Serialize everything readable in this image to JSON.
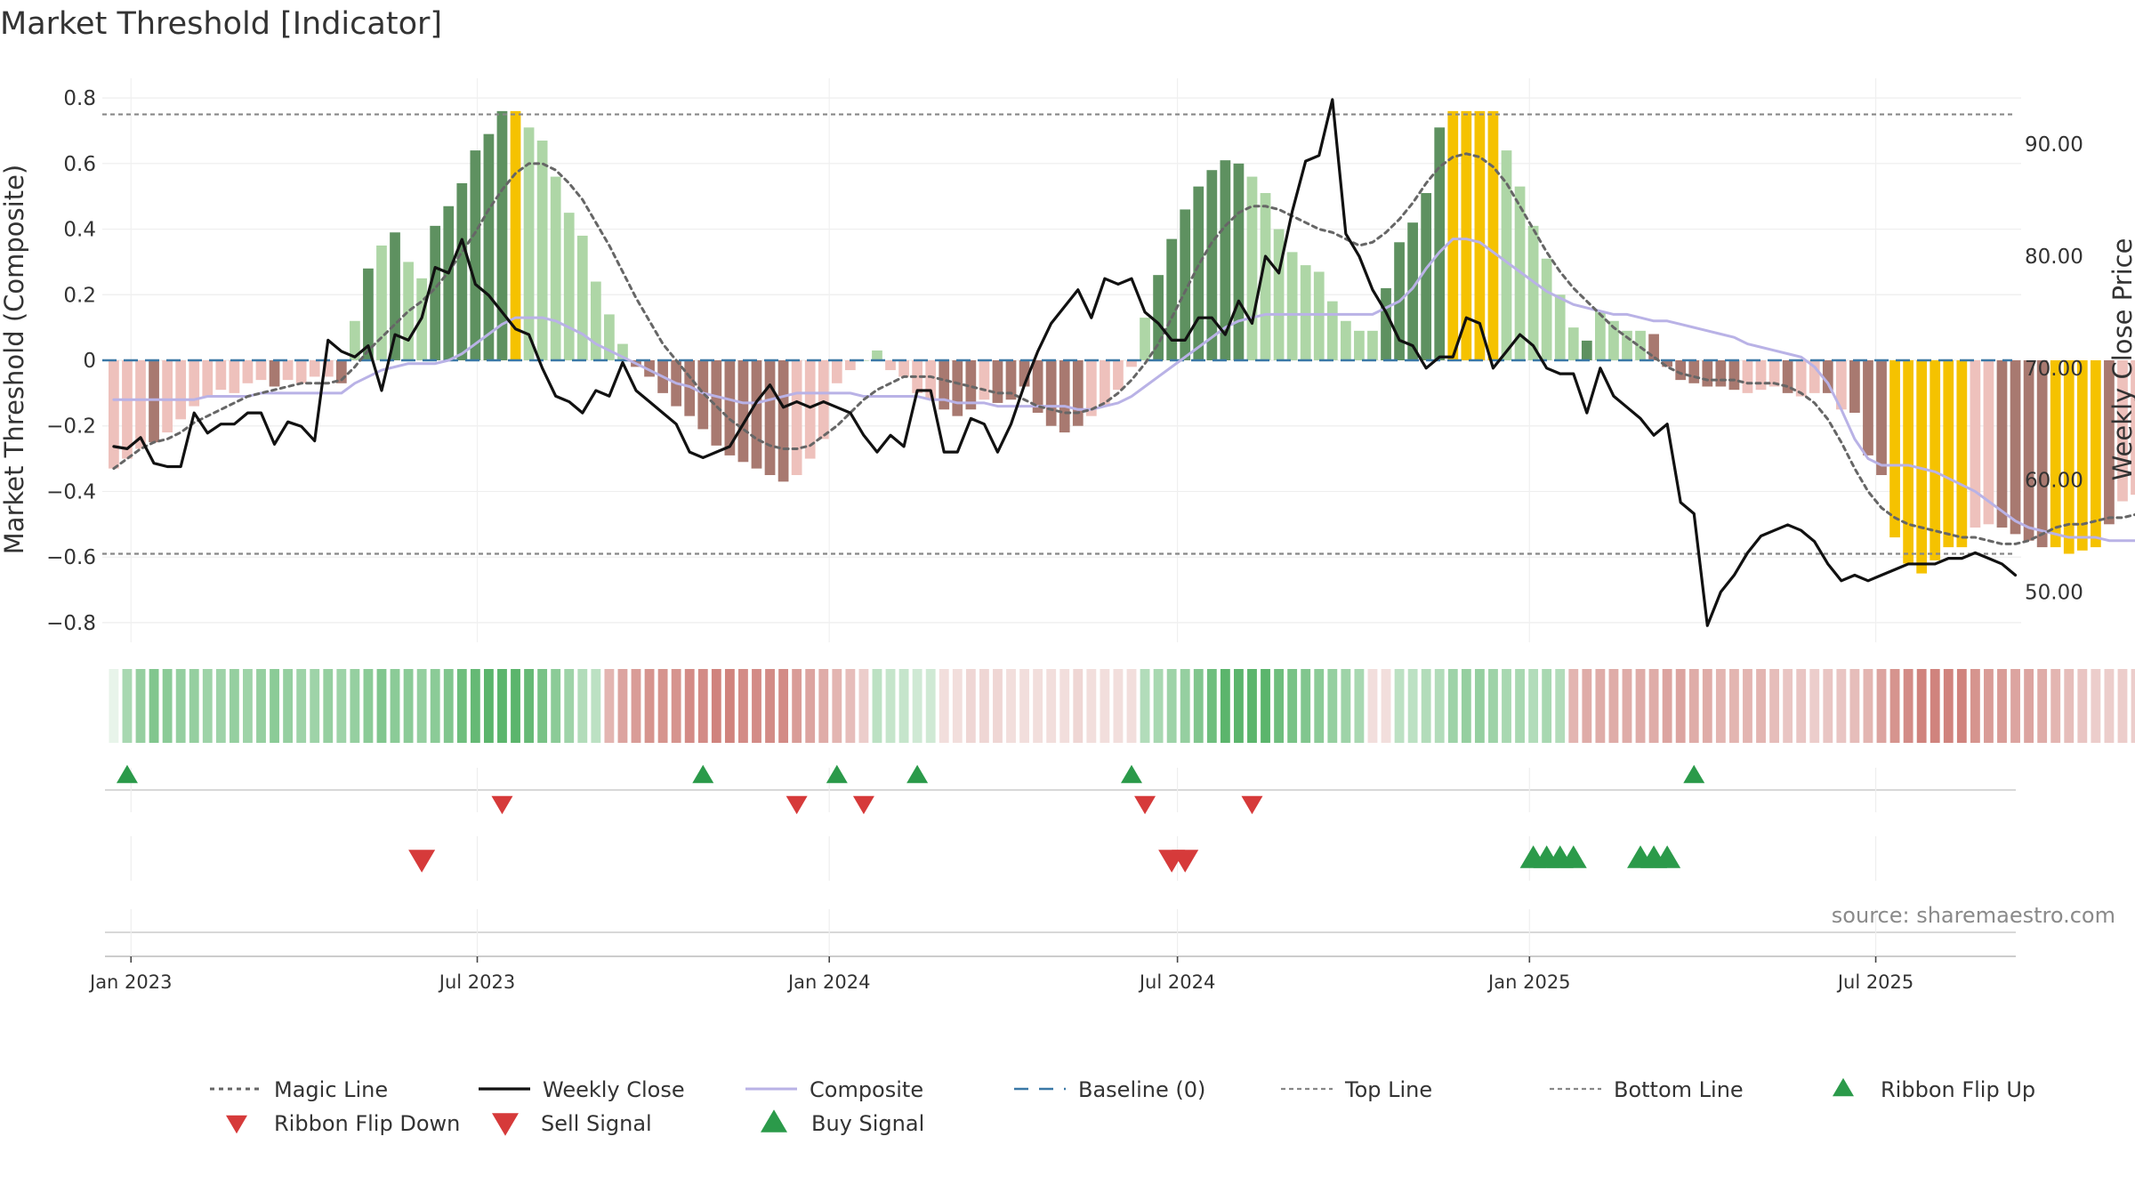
{
  "title": "Market Threshold [Indicator]",
  "source_text": "source: sharemaestro.com",
  "chart_data": {
    "type": "bar",
    "title": "Market Threshold [Indicator]",
    "ylabel_left": "Market Threshold (Composite)",
    "ylabel_right": "Weekly Close Price",
    "ylim_left": [
      -0.86,
      0.86
    ],
    "ylim_right": [
      45.5,
      95.9
    ],
    "yticks_left": [
      0.8,
      0.6,
      0.4,
      0.2,
      0,
      -0.2,
      -0.4,
      -0.6,
      -0.8
    ],
    "yticks_left_labels": [
      "0.8",
      "0.6",
      "0.4",
      "0.2",
      "0",
      "−0.2",
      "−0.4",
      "−0.6",
      "−0.8"
    ],
    "yticks_right": [
      90,
      80,
      70,
      60,
      50
    ],
    "yticks_right_labels": [
      "90.00",
      "80.00",
      "70.00",
      "60.00",
      "50.00"
    ],
    "xlim": [
      "2022-12-17",
      "2025-09-15"
    ],
    "xticks": [
      "2023-01-01",
      "2023-07-01",
      "2024-01-01",
      "2024-07-01",
      "2025-01-01",
      "2025-07-01"
    ],
    "xtick_labels": [
      "Jan 2023",
      "Jul 2023",
      "Jan 2024",
      "Jul 2024",
      "Jan 2025",
      "Jul 2025"
    ],
    "top_line": 0.75,
    "bottom_line": -0.59,
    "baseline": 0,
    "grid": true,
    "legend_position": "bottom",
    "colors": {
      "pos_dark": "#5e9160",
      "pos_light": "#aed6a6",
      "neg_dark": "#a87970",
      "neg_light": "#eec1bc",
      "extreme": "#f5c200",
      "magic": "#666666",
      "close": "#111111",
      "composite": "#b9b2e6",
      "baseline": "#3a78a6",
      "threshold": "#888888",
      "buy": "#2b9a4a",
      "sell": "#d63a3a"
    },
    "legend": [
      {
        "key": "magic",
        "label": "Magic Line"
      },
      {
        "key": "close",
        "label": "Weekly Close"
      },
      {
        "key": "composite",
        "label": "Composite"
      },
      {
        "key": "baseline",
        "label": "Baseline (0)"
      },
      {
        "key": "top",
        "label": "Top Line"
      },
      {
        "key": "bottom",
        "label": "Bottom Line"
      },
      {
        "key": "flip_up",
        "label": "Ribbon Flip Up"
      },
      {
        "key": "flip_down",
        "label": "Ribbon Flip Down"
      },
      {
        "key": "sell",
        "label": "Sell Signal"
      },
      {
        "key": "buy",
        "label": "Buy Signal"
      }
    ],
    "bars": [
      -0.33,
      -0.3,
      -0.27,
      -0.25,
      -0.22,
      -0.18,
      -0.14,
      -0.11,
      -0.09,
      -0.1,
      -0.07,
      -0.06,
      -0.08,
      -0.06,
      -0.07,
      -0.05,
      -0.05,
      -0.07,
      0.12,
      0.28,
      0.35,
      0.39,
      0.3,
      0.25,
      0.41,
      0.47,
      0.54,
      0.64,
      0.69,
      0.76,
      0.76,
      0.71,
      0.67,
      0.56,
      0.45,
      0.38,
      0.24,
      0.14,
      0.05,
      -0.02,
      -0.05,
      -0.1,
      -0.14,
      -0.17,
      -0.21,
      -0.26,
      -0.29,
      -0.31,
      -0.33,
      -0.35,
      -0.37,
      -0.35,
      -0.3,
      -0.24,
      -0.07,
      -0.03,
      0.0,
      0.03,
      -0.03,
      -0.05,
      -0.1,
      -0.12,
      -0.15,
      -0.17,
      -0.15,
      -0.12,
      -0.13,
      -0.12,
      -0.08,
      -0.16,
      -0.2,
      -0.22,
      -0.2,
      -0.17,
      -0.14,
      -0.09,
      -0.02,
      0.13,
      0.26,
      0.37,
      0.46,
      0.53,
      0.58,
      0.61,
      0.6,
      0.56,
      0.51,
      0.4,
      0.33,
      0.29,
      0.27,
      0.18,
      0.12,
      0.09,
      0.09,
      0.22,
      0.36,
      0.42,
      0.51,
      0.71,
      0.76,
      0.76,
      0.76,
      0.76,
      0.64,
      0.53,
      0.41,
      0.31,
      0.2,
      0.1,
      0.06,
      0.15,
      0.12,
      0.09,
      0.09,
      0.08,
      -0.02,
      -0.06,
      -0.07,
      -0.08,
      -0.08,
      -0.09,
      -0.1,
      -0.09,
      -0.08,
      -0.1,
      -0.11,
      -0.1,
      -0.1,
      -0.15,
      -0.16,
      -0.29,
      -0.35,
      -0.54,
      -0.62,
      -0.65,
      -0.61,
      -0.57,
      -0.57,
      -0.51,
      -0.5,
      -0.51,
      -0.53,
      -0.55,
      -0.57,
      -0.57,
      -0.59,
      -0.58,
      -0.57,
      -0.5,
      -0.43,
      -0.41,
      -0.4,
      -0.42,
      -0.47,
      -0.48,
      -0.48,
      -0.46,
      -0.45,
      -0.43
    ],
    "bar_kind": [
      "nl",
      "nl",
      "nl",
      "nd",
      "nl",
      "nl",
      "nl",
      "nl",
      "nl",
      "nl",
      "nl",
      "nl",
      "nd",
      "nl",
      "nl",
      "nl",
      "nl",
      "nd",
      "pl",
      "pd",
      "pl",
      "pd",
      "pl",
      "pl",
      "pd",
      "pd",
      "pd",
      "pd",
      "pd",
      "pd",
      "ex",
      "pl",
      "pl",
      "pl",
      "pl",
      "pl",
      "pl",
      "pl",
      "pl",
      "nd",
      "nd",
      "nd",
      "nd",
      "nd",
      "nd",
      "nd",
      "nd",
      "nd",
      "nd",
      "nd",
      "nd",
      "nl",
      "nl",
      "nl",
      "nl",
      "nl",
      "pl",
      "pl",
      "nl",
      "nl",
      "nl",
      "nl",
      "nd",
      "nd",
      "nd",
      "nl",
      "nd",
      "nd",
      "nd",
      "nd",
      "nd",
      "nd",
      "nd",
      "nl",
      "nl",
      "nl",
      "nl",
      "pl",
      "pd",
      "pd",
      "pd",
      "pd",
      "pd",
      "pd",
      "pd",
      "pl",
      "pl",
      "pl",
      "pl",
      "pl",
      "pl",
      "pl",
      "pl",
      "pl",
      "pl",
      "pd",
      "pd",
      "pd",
      "pd",
      "pd",
      "ex",
      "ex",
      "ex",
      "ex",
      "pl",
      "pl",
      "pl",
      "pl",
      "pl",
      "pl",
      "pd",
      "pl",
      "pl",
      "pl",
      "pl",
      "nd",
      "nd",
      "nd",
      "nd",
      "nd",
      "nd",
      "nd",
      "nl",
      "nl",
      "nl",
      "nd",
      "nl",
      "nl",
      "nd",
      "nl",
      "nd",
      "nd",
      "nd",
      "ex",
      "ex",
      "ex",
      "ex",
      "ex",
      "ex",
      "nl",
      "nl",
      "nd",
      "nd",
      "nd",
      "nd",
      "ex",
      "ex",
      "ex",
      "ex",
      "nd",
      "nl",
      "nl",
      "nl",
      "nd",
      "nl",
      "nd",
      "nl",
      "nl",
      "nd",
      "nl"
    ],
    "weekly_close": [
      63.0,
      62.8,
      63.8,
      61.5,
      61.2,
      61.2,
      66.0,
      64.2,
      65.0,
      65.0,
      66.0,
      66.0,
      63.2,
      65.2,
      64.8,
      63.5,
      72.5,
      71.5,
      71.0,
      72.0,
      68.0,
      73.0,
      72.5,
      74.5,
      79.0,
      78.5,
      81.5,
      77.5,
      76.5,
      75.0,
      73.5,
      73.0,
      70.0,
      67.5,
      67.0,
      66.0,
      68.0,
      67.5,
      70.5,
      68.0,
      67.0,
      66.0,
      65.0,
      62.5,
      62.0,
      62.5,
      63.0,
      65.0,
      67.0,
      68.5,
      66.5,
      67.0,
      66.5,
      67.0,
      66.5,
      66.0,
      64.0,
      62.5,
      64.0,
      63.0,
      68.0,
      68.0,
      62.5,
      62.5,
      65.5,
      65.0,
      62.5,
      65.0,
      68.5,
      71.5,
      74.0,
      75.5,
      77.0,
      74.5,
      78.0,
      77.5,
      78.0,
      75.0,
      74.0,
      72.5,
      72.5,
      74.5,
      74.5,
      73.0,
      76.0,
      74.0,
      80.0,
      78.5,
      84.0,
      88.5,
      89.0,
      94.0,
      82.0,
      80.0,
      77.0,
      75.0,
      72.5,
      72.0,
      70.0,
      71.0,
      71.0,
      74.5,
      74.0,
      70.0,
      71.5,
      73.0,
      72.0,
      70.0,
      69.5,
      69.5,
      66.0,
      70.0,
      67.5,
      66.5,
      65.5,
      64.0,
      65.0,
      58.0,
      57.0,
      47.0,
      50.0,
      51.5,
      53.5,
      55.0,
      55.5,
      56.0,
      55.5,
      54.5,
      52.5,
      51.0,
      51.5,
      51.0,
      51.5,
      52.0,
      52.5,
      52.5,
      52.5,
      53.0,
      53.0,
      53.5,
      53.0,
      52.5,
      51.5
    ],
    "close_start_index": 0,
    "magic_line": [
      -0.33,
      -0.3,
      -0.27,
      -0.25,
      -0.24,
      -0.22,
      -0.19,
      -0.17,
      -0.15,
      -0.13,
      -0.11,
      -0.1,
      -0.09,
      -0.08,
      -0.07,
      -0.07,
      -0.07,
      -0.06,
      -0.02,
      0.03,
      0.07,
      0.11,
      0.15,
      0.18,
      0.22,
      0.27,
      0.33,
      0.39,
      0.46,
      0.52,
      0.57,
      0.6,
      0.6,
      0.58,
      0.54,
      0.49,
      0.42,
      0.35,
      0.27,
      0.19,
      0.12,
      0.05,
      0.0,
      -0.05,
      -0.1,
      -0.14,
      -0.18,
      -0.21,
      -0.24,
      -0.26,
      -0.27,
      -0.27,
      -0.26,
      -0.23,
      -0.2,
      -0.16,
      -0.12,
      -0.09,
      -0.07,
      -0.05,
      -0.05,
      -0.05,
      -0.06,
      -0.07,
      -0.08,
      -0.09,
      -0.1,
      -0.1,
      -0.12,
      -0.14,
      -0.15,
      -0.16,
      -0.16,
      -0.15,
      -0.13,
      -0.1,
      -0.06,
      -0.01,
      0.05,
      0.13,
      0.21,
      0.29,
      0.36,
      0.41,
      0.45,
      0.47,
      0.47,
      0.46,
      0.44,
      0.42,
      0.4,
      0.39,
      0.37,
      0.35,
      0.36,
      0.39,
      0.43,
      0.48,
      0.54,
      0.59,
      0.62,
      0.63,
      0.62,
      0.59,
      0.54,
      0.47,
      0.4,
      0.33,
      0.27,
      0.22,
      0.18,
      0.14,
      0.1,
      0.07,
      0.04,
      0.01,
      -0.02,
      -0.04,
      -0.05,
      -0.06,
      -0.06,
      -0.06,
      -0.07,
      -0.07,
      -0.07,
      -0.08,
      -0.1,
      -0.13,
      -0.18,
      -0.25,
      -0.33,
      -0.4,
      -0.45,
      -0.48,
      -0.5,
      -0.51,
      -0.52,
      -0.53,
      -0.54,
      -0.54,
      -0.55,
      -0.56,
      -0.56,
      -0.55,
      -0.53,
      -0.51,
      -0.5,
      -0.5,
      -0.49,
      -0.48,
      -0.48,
      -0.47,
      -0.46,
      -0.46,
      -0.46,
      -0.46
    ],
    "composite": [
      -0.12,
      -0.12,
      -0.12,
      -0.12,
      -0.12,
      -0.12,
      -0.12,
      -0.11,
      -0.11,
      -0.11,
      -0.11,
      -0.1,
      -0.1,
      -0.1,
      -0.1,
      -0.1,
      -0.1,
      -0.1,
      -0.07,
      -0.05,
      -0.03,
      -0.02,
      -0.01,
      -0.01,
      -0.01,
      0.0,
      0.02,
      0.05,
      0.08,
      0.11,
      0.13,
      0.13,
      0.13,
      0.12,
      0.1,
      0.08,
      0.05,
      0.03,
      0.01,
      -0.01,
      -0.03,
      -0.05,
      -0.07,
      -0.08,
      -0.1,
      -0.11,
      -0.12,
      -0.13,
      -0.13,
      -0.12,
      -0.11,
      -0.1,
      -0.1,
      -0.1,
      -0.1,
      -0.1,
      -0.11,
      -0.11,
      -0.11,
      -0.11,
      -0.11,
      -0.12,
      -0.12,
      -0.13,
      -0.13,
      -0.13,
      -0.14,
      -0.14,
      -0.14,
      -0.14,
      -0.14,
      -0.14,
      -0.15,
      -0.15,
      -0.14,
      -0.13,
      -0.11,
      -0.08,
      -0.05,
      -0.02,
      0.01,
      0.04,
      0.07,
      0.1,
      0.12,
      0.13,
      0.14,
      0.14,
      0.14,
      0.14,
      0.14,
      0.14,
      0.14,
      0.14,
      0.14,
      0.16,
      0.18,
      0.22,
      0.28,
      0.33,
      0.37,
      0.37,
      0.36,
      0.33,
      0.3,
      0.27,
      0.24,
      0.21,
      0.19,
      0.17,
      0.16,
      0.15,
      0.14,
      0.14,
      0.13,
      0.12,
      0.12,
      0.11,
      0.1,
      0.09,
      0.08,
      0.07,
      0.05,
      0.04,
      0.03,
      0.02,
      0.01,
      -0.02,
      -0.07,
      -0.15,
      -0.24,
      -0.3,
      -0.32,
      -0.32,
      -0.32,
      -0.33,
      -0.34,
      -0.36,
      -0.38,
      -0.4,
      -0.43,
      -0.46,
      -0.49,
      -0.51,
      -0.52,
      -0.53,
      -0.54,
      -0.54,
      -0.54,
      -0.55,
      -0.55,
      -0.55,
      -0.55,
      -0.56,
      -0.57
    ],
    "ribbon": [
      0.1,
      0.45,
      0.55,
      0.65,
      0.6,
      0.55,
      0.55,
      0.5,
      0.5,
      0.55,
      0.5,
      0.55,
      0.6,
      0.55,
      0.5,
      0.5,
      0.55,
      0.5,
      0.55,
      0.6,
      0.65,
      0.6,
      0.6,
      0.55,
      0.6,
      0.65,
      0.75,
      0.8,
      0.85,
      0.85,
      0.85,
      0.8,
      0.7,
      0.6,
      0.5,
      0.4,
      0.35,
      -0.45,
      -0.55,
      -0.6,
      -0.65,
      -0.65,
      -0.65,
      -0.7,
      -0.7,
      -0.75,
      -0.75,
      -0.7,
      -0.7,
      -0.7,
      -0.7,
      -0.6,
      -0.55,
      -0.5,
      -0.45,
      -0.4,
      -0.3,
      0.35,
      0.3,
      0.3,
      0.25,
      0.25,
      -0.2,
      -0.2,
      -0.25,
      -0.25,
      -0.25,
      -0.2,
      -0.2,
      -0.2,
      -0.2,
      -0.2,
      -0.25,
      -0.2,
      -0.2,
      -0.2,
      -0.2,
      0.4,
      0.45,
      0.5,
      0.55,
      0.65,
      0.75,
      0.85,
      0.85,
      0.85,
      0.85,
      0.75,
      0.7,
      0.65,
      0.6,
      0.55,
      0.5,
      0.45,
      -0.2,
      -0.2,
      0.35,
      0.35,
      0.4,
      0.4,
      0.5,
      0.55,
      0.55,
      0.5,
      0.45,
      0.45,
      0.4,
      0.45,
      0.4,
      -0.45,
      -0.5,
      -0.5,
      -0.5,
      -0.5,
      -0.5,
      -0.5,
      -0.55,
      -0.55,
      -0.5,
      -0.5,
      -0.45,
      -0.45,
      -0.45,
      -0.45,
      -0.4,
      -0.35,
      -0.35,
      -0.3,
      -0.35,
      -0.35,
      -0.4,
      -0.45,
      -0.55,
      -0.65,
      -0.7,
      -0.75,
      -0.75,
      -0.75,
      -0.75,
      -0.65,
      -0.6,
      -0.6,
      -0.55,
      -0.55,
      -0.5,
      -0.45,
      -0.4,
      -0.35,
      -0.3,
      -0.3,
      -0.3,
      -0.3,
      -0.35,
      0.25,
      0.25,
      0.25,
      0.25,
      0.25,
      0.25,
      0.25,
      0.25
    ],
    "flip_up": [
      1,
      44,
      54,
      60,
      76,
      118
    ],
    "flip_down": [
      29,
      51,
      56,
      77,
      85
    ],
    "sell_signals": [
      23,
      79,
      80
    ],
    "buy_signals": [
      106,
      107,
      108,
      109,
      114,
      115,
      116
    ]
  }
}
